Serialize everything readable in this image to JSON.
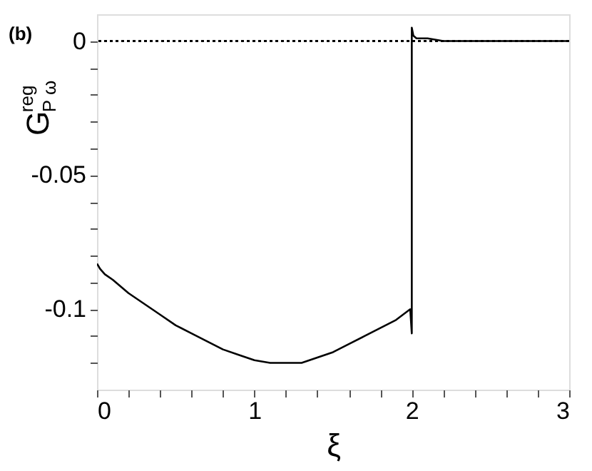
{
  "chart_data": {
    "type": "line",
    "xlabel": "ξ",
    "ylabel": "G$^{reg}$$_{P ω}$",
    "annotations": [
      "(b)"
    ],
    "x": [
      0,
      0.02,
      0.05,
      0.1,
      0.2,
      0.3,
      0.4,
      0.5,
      0.6,
      0.7,
      0.8,
      0.9,
      1.0,
      1.1,
      1.2,
      1.3,
      1.4,
      1.5,
      1.6,
      1.7,
      1.8,
      1.9,
      1.99,
      2.0,
      2.0,
      2.01,
      2.03,
      2.1,
      2.2,
      2.3,
      2.5,
      2.7,
      3.0
    ],
    "series": [
      {
        "color": "#000000",
        "values": [
          -0.083,
          -0.085,
          -0.087,
          -0.089,
          -0.094,
          -0.098,
          -0.102,
          -0.106,
          -0.109,
          -0.112,
          -0.115,
          -0.117,
          -0.119,
          -0.12,
          -0.12,
          -0.12,
          -0.118,
          -0.116,
          -0.113,
          -0.11,
          -0.107,
          -0.104,
          -0.1,
          -0.109,
          0.005,
          0.002,
          0.001,
          0.001,
          0,
          0,
          0,
          0,
          0
        ]
      }
    ],
    "xlim": [
      0,
      3
    ],
    "ylim": [
      -0.13,
      0.01
    ],
    "xticks": [
      0,
      {
        "value": 0.2,
        "label": null
      },
      {
        "value": 0.4,
        "label": null
      },
      {
        "value": 0.6,
        "label": null
      },
      {
        "value": 0.8,
        "label": null
      },
      1,
      {
        "value": 1.2,
        "label": null
      },
      {
        "value": 1.4,
        "label": null
      },
      {
        "value": 1.6,
        "label": null
      },
      {
        "value": 1.8,
        "label": null
      },
      2,
      {
        "value": 2.2,
        "label": null
      },
      {
        "value": 2.4,
        "label": null
      },
      {
        "value": 2.6,
        "label": null
      },
      {
        "value": 2.8,
        "label": null
      },
      3
    ],
    "yticks": [
      {
        "value": -0.12,
        "label": null
      },
      {
        "value": -0.11,
        "label": null
      },
      -0.1,
      {
        "value": -0.09,
        "label": null
      },
      {
        "value": -0.08,
        "label": null
      },
      {
        "value": -0.07,
        "label": null
      },
      {
        "value": -0.06,
        "label": null
      },
      -0.05,
      {
        "value": -0.04,
        "label": null
      },
      {
        "value": -0.03,
        "label": null
      },
      {
        "value": -0.02,
        "label": null
      },
      {
        "value": -0.01,
        "label": null
      },
      0
    ],
    "ref_lines": [
      {
        "axis": "y",
        "value": 0,
        "line_style": "dotted",
        "color": "#000000"
      }
    ],
    "grid": false,
    "marker": "none",
    "line_style": "solid"
  }
}
